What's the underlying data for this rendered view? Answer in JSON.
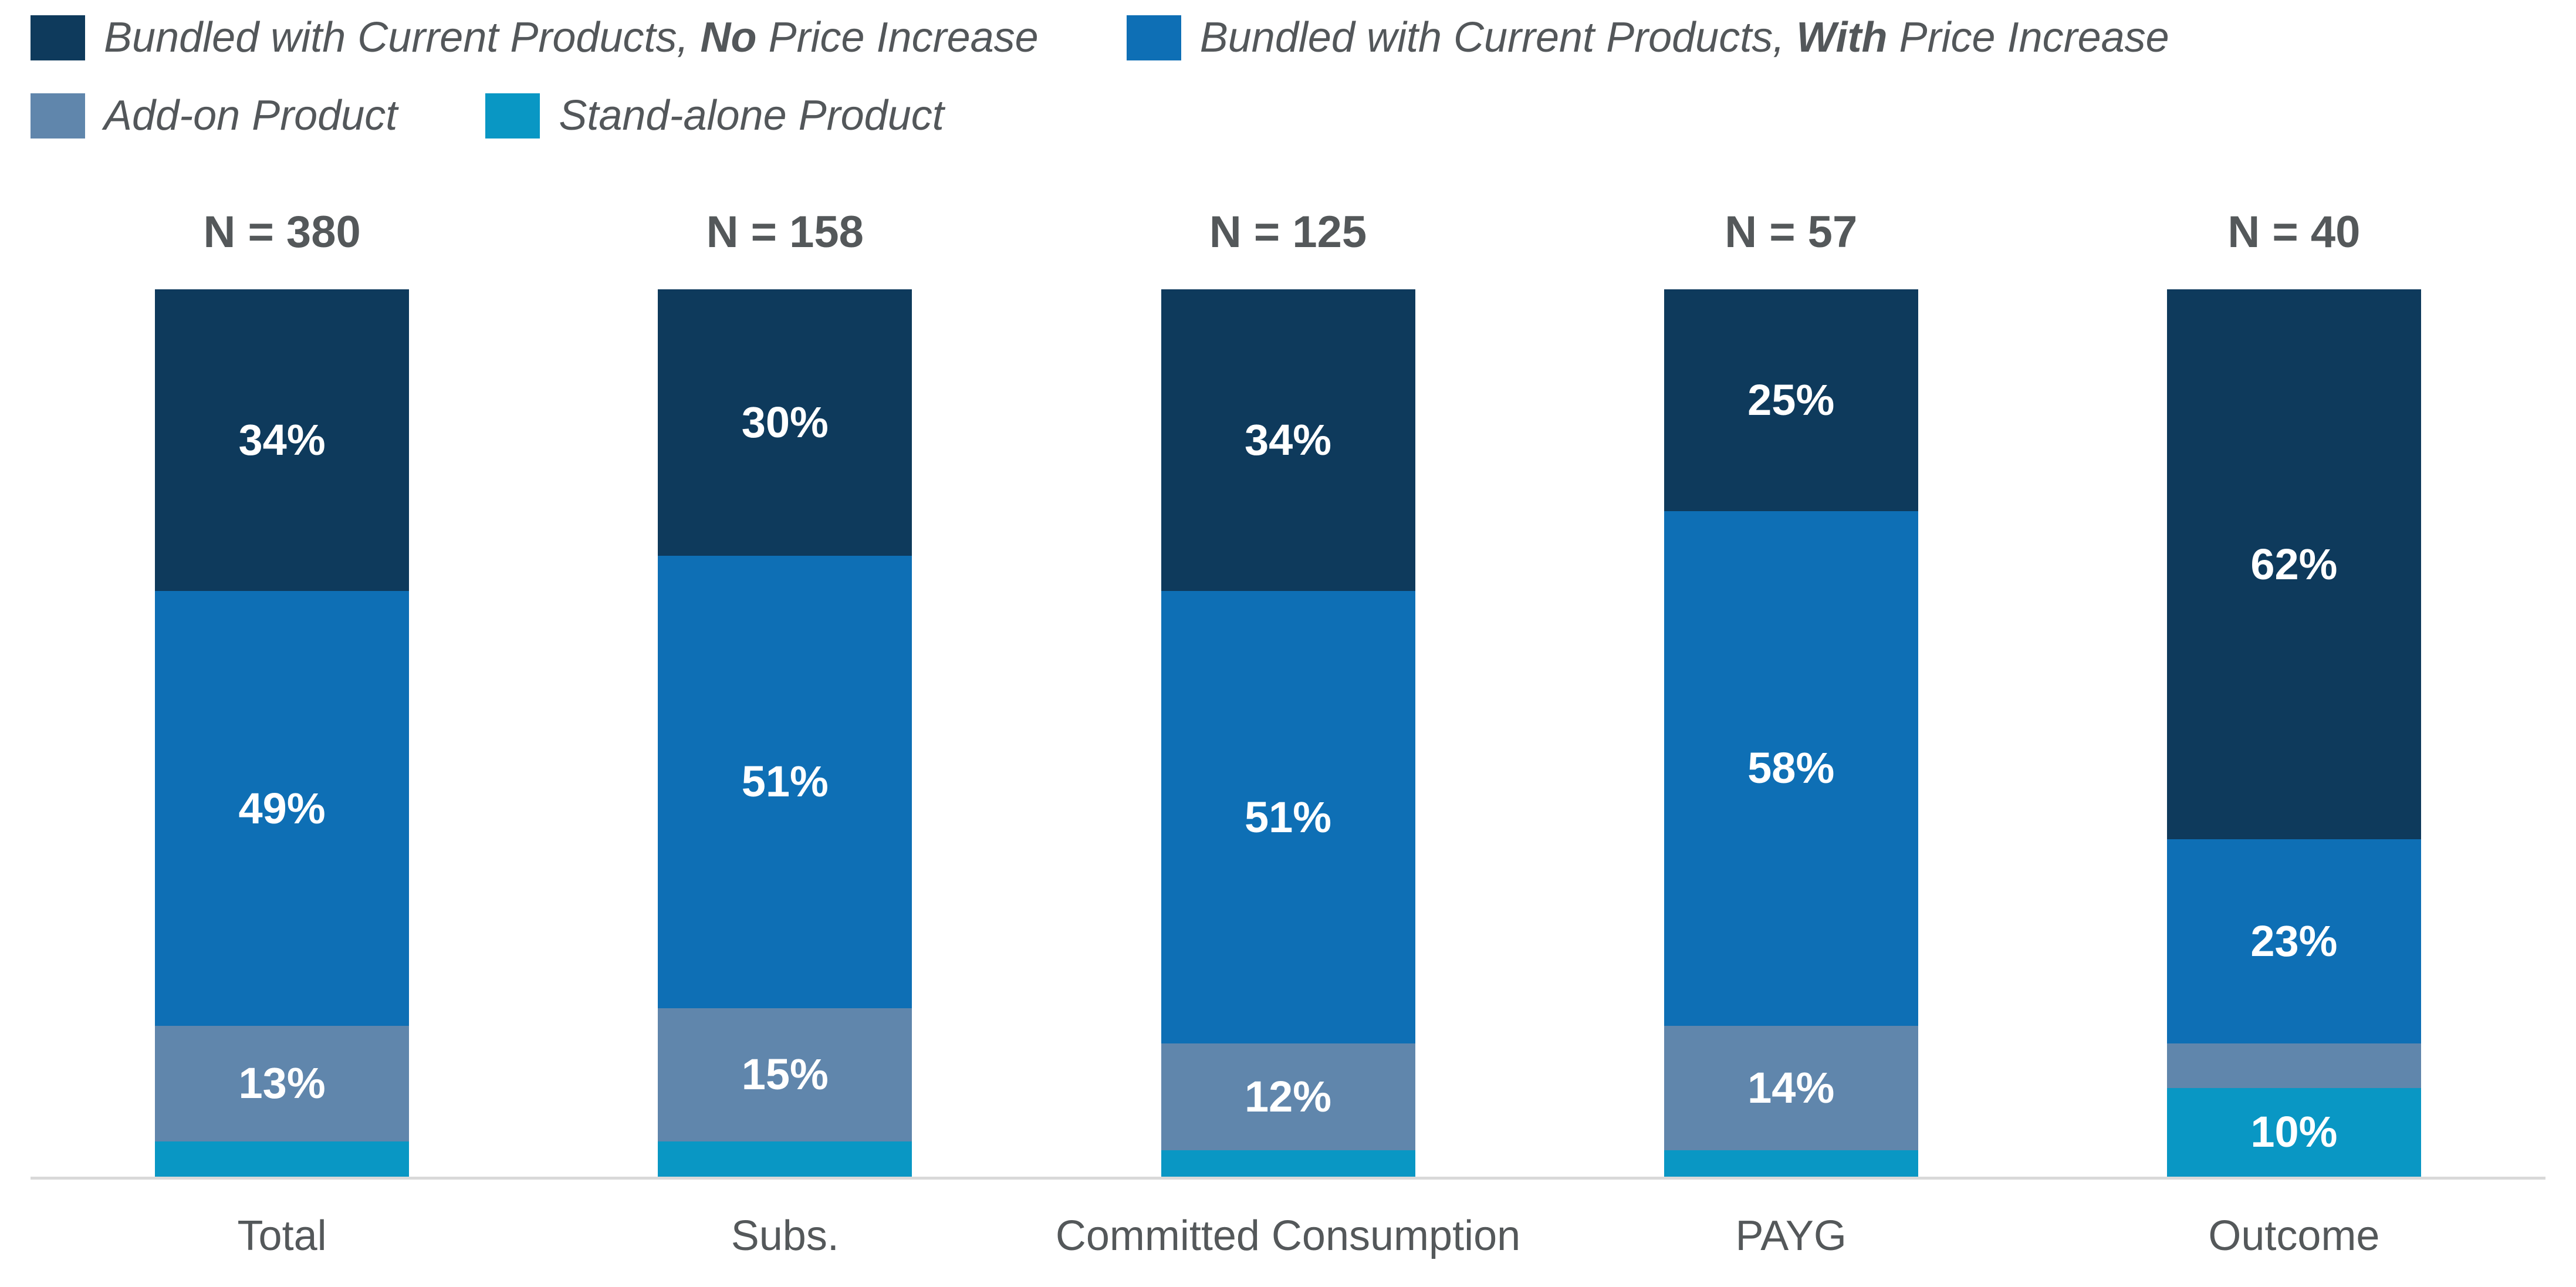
{
  "legend": {
    "rows": [
      [
        {
          "key": "bundled-no-increase",
          "color": "#0e3a5c",
          "text_before": "Bundled with Current Products, ",
          "bold": "No",
          "text_after": " Price Increase"
        },
        {
          "key": "bundled-with-increase",
          "color": "#0e6fb5",
          "text_before": "Bundled with Current Products, ",
          "bold": "With",
          "text_after": " Price Increase"
        }
      ],
      [
        {
          "key": "add-on",
          "color": "#6086ac",
          "text_before": "Add-on Product",
          "bold": "",
          "text_after": ""
        },
        {
          "key": "stand-alone",
          "color": "#0997c4",
          "text_before": "Stand-alone Product",
          "bold": "",
          "text_after": ""
        }
      ]
    ]
  },
  "chart_data": {
    "type": "bar",
    "stacked": true,
    "unit": "percent",
    "title": "",
    "xlabel": "",
    "ylabel": "",
    "ylim": [
      0,
      100
    ],
    "grid": false,
    "legend_position": "top",
    "axis_line_color": "#d9d9d9",
    "label_color": "#54585a",
    "categories": [
      "Total",
      "Subs.",
      "Committed Consumption",
      "PAYG",
      "Outcome"
    ],
    "sample_sizes": [
      "N = 380",
      "N = 158",
      "N = 125",
      "N = 57",
      "N = 40"
    ],
    "series": [
      {
        "name": "Bundled with Current Products, No Price Increase",
        "key": "bundled-no-increase",
        "color": "#0e3a5c",
        "values": [
          34,
          30,
          34,
          25,
          62
        ],
        "labels": [
          "34%",
          "30%",
          "34%",
          "25%",
          "62%"
        ]
      },
      {
        "name": "Bundled with Current Products, With Price Increase",
        "key": "bundled-with-increase",
        "color": "#0e6fb5",
        "values": [
          49,
          51,
          51,
          58,
          23
        ],
        "labels": [
          "49%",
          "51%",
          "51%",
          "58%",
          "23%"
        ]
      },
      {
        "name": "Add-on Product",
        "key": "add-on",
        "color": "#6086ac",
        "values": [
          13,
          15,
          12,
          14,
          5
        ],
        "labels": [
          "13%",
          "15%",
          "12%",
          "14%",
          ""
        ]
      },
      {
        "name": "Stand-alone Product",
        "key": "stand-alone",
        "color": "#0997c4",
        "values": [
          4,
          4,
          3,
          3,
          10
        ],
        "labels": [
          "",
          "",
          "",
          "",
          "10%"
        ]
      }
    ]
  }
}
